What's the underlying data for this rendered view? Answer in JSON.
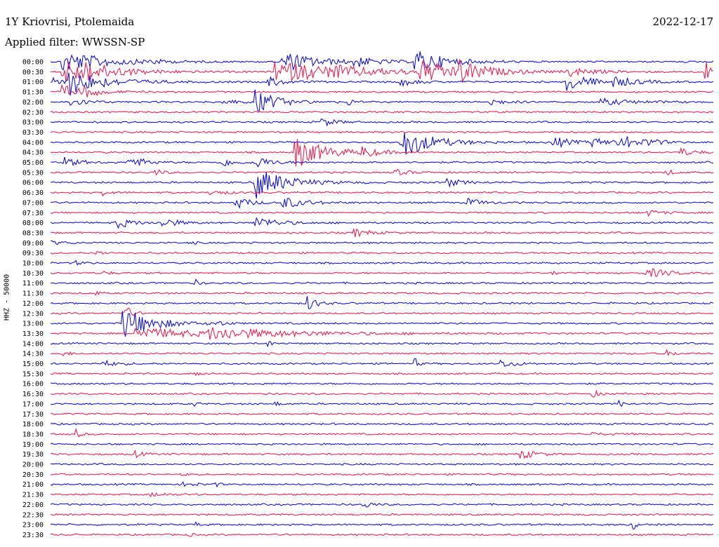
{
  "header": {
    "station": "1Y Kriovrisi, Ptolemaida",
    "date": "2022-12-17",
    "filter": "Applied filter: WWSSN-SP"
  },
  "chart_data": {
    "type": "line",
    "title": "1Y Kriovrisi, Ptolemaida",
    "ylabel": "HHZ - 50000",
    "colors": [
      "#0000dd",
      "#ee1144"
    ],
    "rows": [
      {
        "label": "00:00",
        "events": [
          [
            0.02,
            1.1,
            0.06
          ],
          [
            0.35,
            1.0,
            0.05
          ],
          [
            0.15,
            0.3,
            0.01
          ],
          [
            0.45,
            0.6,
            0.03
          ],
          [
            0.55,
            1.2,
            0.04
          ]
        ]
      },
      {
        "label": "00:30",
        "events": [
          [
            0.02,
            1.2,
            0.06
          ],
          [
            0.05,
            0.4,
            0.03
          ],
          [
            0.34,
            1.0,
            0.12
          ],
          [
            0.43,
            0.3,
            0.02
          ],
          [
            0.56,
            1.0,
            0.05
          ],
          [
            0.62,
            0.8,
            0.03
          ],
          [
            0.78,
            0.5,
            0.03
          ],
          [
            0.99,
            1.0,
            0.005
          ]
        ]
      },
      {
        "label": "01:00",
        "events": [
          [
            0.0,
            0.6,
            0.02
          ],
          [
            0.03,
            1.2,
            0.05
          ],
          [
            0.33,
            0.5,
            0.02
          ],
          [
            0.53,
            0.4,
            0.02
          ],
          [
            0.78,
            1.0,
            0.03
          ],
          [
            0.85,
            0.5,
            0.03
          ]
        ]
      },
      {
        "label": "01:30",
        "events": [
          [
            0.02,
            0.6,
            0.03
          ],
          [
            0.05,
            0.4,
            0.02
          ]
        ]
      },
      {
        "label": "02:00",
        "events": [
          [
            0.03,
            0.5,
            0.02
          ],
          [
            0.26,
            0.3,
            0.02
          ],
          [
            0.31,
            1.2,
            0.03
          ],
          [
            0.45,
            0.5,
            0.003
          ],
          [
            0.66,
            0.4,
            0.02
          ],
          [
            0.83,
            0.3,
            0.05
          ]
        ]
      },
      {
        "label": "02:30",
        "events": []
      },
      {
        "label": "03:00",
        "events": [
          [
            0.41,
            0.4,
            0.02
          ]
        ]
      },
      {
        "label": "03:30",
        "events": []
      },
      {
        "label": "04:00",
        "events": [
          [
            0.53,
            1.6,
            0.04
          ],
          [
            0.76,
            0.6,
            0.02
          ],
          [
            0.82,
            0.4,
            0.02
          ],
          [
            0.85,
            0.4,
            0.02
          ],
          [
            0.87,
            0.4,
            0.02
          ],
          [
            0.9,
            0.3,
            0.02
          ]
        ]
      },
      {
        "label": "04:30",
        "events": [
          [
            0.37,
            1.6,
            0.04
          ],
          [
            0.47,
            0.5,
            0.02
          ],
          [
            0.95,
            0.4,
            0.02
          ]
        ]
      },
      {
        "label": "05:00",
        "events": [
          [
            0.02,
            0.5,
            0.02
          ],
          [
            0.12,
            0.7,
            0.02
          ],
          [
            0.26,
            0.4,
            0.02
          ],
          [
            0.31,
            0.6,
            0.02
          ]
        ]
      },
      {
        "label": "05:30",
        "events": [
          [
            0.16,
            0.3,
            0.01
          ],
          [
            0.52,
            0.3,
            0.02
          ],
          [
            0.93,
            0.3,
            0.01
          ]
        ]
      },
      {
        "label": "06:00",
        "events": [
          [
            0.31,
            1.6,
            0.04
          ],
          [
            0.6,
            0.4,
            0.02
          ]
        ]
      },
      {
        "label": "06:30",
        "events": [
          [
            0.08,
            0.3,
            0.01
          ],
          [
            0.24,
            0.3,
            0.02
          ]
        ]
      },
      {
        "label": "07:00",
        "events": [
          [
            0.28,
            0.6,
            0.02
          ],
          [
            0.35,
            0.6,
            0.03
          ],
          [
            0.63,
            0.4,
            0.02
          ]
        ]
      },
      {
        "label": "07:30",
        "events": [
          [
            0.9,
            0.3,
            0.02
          ]
        ]
      },
      {
        "label": "08:00",
        "events": [
          [
            0.1,
            0.6,
            0.02
          ],
          [
            0.17,
            0.5,
            0.02
          ],
          [
            0.31,
            0.6,
            0.03
          ]
        ]
      },
      {
        "label": "08:30",
        "events": [
          [
            0.46,
            0.4,
            0.02
          ]
        ]
      },
      {
        "label": "09:00",
        "events": [
          [
            0.0,
            0.2,
            0.02
          ],
          [
            0.21,
            0.3,
            0.005
          ]
        ]
      },
      {
        "label": "09:30",
        "events": [
          [
            0.07,
            0.2,
            0.01
          ]
        ]
      },
      {
        "label": "10:00",
        "events": [
          [
            0.04,
            0.2,
            0.01
          ]
        ]
      },
      {
        "label": "10:30",
        "events": [
          [
            0.08,
            0.2,
            0.01
          ],
          [
            0.76,
            0.3,
            0.005
          ],
          [
            0.9,
            0.5,
            0.03
          ]
        ]
      },
      {
        "label": "11:00",
        "events": [
          [
            0.22,
            0.3,
            0.005
          ]
        ]
      },
      {
        "label": "11:30",
        "events": [
          [
            0.07,
            0.2,
            0.005
          ]
        ]
      },
      {
        "label": "12:00",
        "events": [
          [
            0.39,
            0.8,
            0.01
          ]
        ]
      },
      {
        "label": "12:30",
        "events": [
          [
            0.11,
            1.0,
            0.01
          ]
        ]
      },
      {
        "label": "13:00",
        "events": [
          [
            0.11,
            1.6,
            0.04
          ],
          [
            0.25,
            0.3,
            0.01
          ]
        ]
      },
      {
        "label": "13:30",
        "events": [
          [
            0.13,
            0.6,
            0.09
          ],
          [
            0.24,
            0.5,
            0.12
          ]
        ]
      },
      {
        "label": "14:00",
        "events": [
          [
            0.33,
            0.3,
            0.005
          ]
        ]
      },
      {
        "label": "14:30",
        "events": [
          [
            0.02,
            0.2,
            0.01
          ],
          [
            0.93,
            0.3,
            0.01
          ]
        ]
      },
      {
        "label": "15:00",
        "events": [
          [
            0.08,
            0.3,
            0.02
          ],
          [
            0.55,
            0.5,
            0.005
          ],
          [
            0.68,
            0.4,
            0.02
          ]
        ]
      },
      {
        "label": "15:30",
        "events": [
          [
            0.22,
            0.2,
            0.01
          ]
        ]
      },
      {
        "label": "16:00",
        "events": []
      },
      {
        "label": "16:30",
        "events": [
          [
            0.82,
            0.3,
            0.01
          ]
        ]
      },
      {
        "label": "17:00",
        "events": [
          [
            0.22,
            0.2,
            0.005
          ],
          [
            0.34,
            0.2,
            0.005
          ],
          [
            0.86,
            0.3,
            0.005
          ]
        ]
      },
      {
        "label": "17:30",
        "events": []
      },
      {
        "label": "18:00",
        "events": []
      },
      {
        "label": "18:30",
        "events": [
          [
            0.04,
            0.5,
            0.005
          ],
          [
            0.81,
            0.2,
            0.02
          ]
        ]
      },
      {
        "label": "19:00",
        "events": []
      },
      {
        "label": "19:30",
        "events": [
          [
            0.13,
            0.3,
            0.01
          ],
          [
            0.71,
            0.5,
            0.02
          ]
        ]
      },
      {
        "label": "20:00",
        "events": []
      },
      {
        "label": "20:30",
        "events": [
          [
            0.2,
            0.2,
            0.005
          ]
        ]
      },
      {
        "label": "21:00",
        "events": [
          [
            0.2,
            0.2,
            0.02
          ],
          [
            0.25,
            0.2,
            0.005
          ]
        ]
      },
      {
        "label": "21:30",
        "events": [
          [
            0.15,
            0.2,
            0.02
          ]
        ]
      },
      {
        "label": "22:00",
        "events": [
          [
            0.47,
            0.5,
            0.01
          ]
        ]
      },
      {
        "label": "22:30",
        "events": []
      },
      {
        "label": "23:00",
        "events": [
          [
            0.22,
            0.2,
            0.005
          ],
          [
            0.88,
            0.6,
            0.003
          ]
        ]
      },
      {
        "label": "23:30",
        "events": [
          [
            0.21,
            0.2,
            0.005
          ]
        ]
      }
    ]
  }
}
